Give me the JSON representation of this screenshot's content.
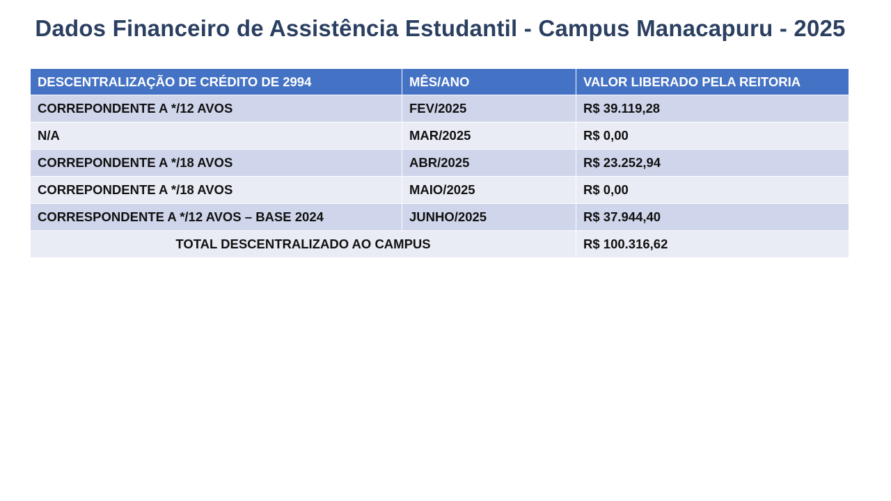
{
  "title": "Dados Financeiro de Assistência Estudantil - Campus Manacapuru - 2025",
  "table": {
    "headers": [
      "DESCENTRALIZAÇÃO DE CRÉDITO DE 2994",
      "MÊS/ANO",
      "VALOR LIBERADO PELA REITORIA"
    ],
    "rows": [
      {
        "descricao": "CORREPONDENTE A */12 AVOS",
        "mes": "FEV/2025",
        "valor": "R$ 39.119,28"
      },
      {
        "descricao": "N/A",
        "mes": "MAR/2025",
        "valor": "R$ 0,00"
      },
      {
        "descricao": "CORREPONDENTE A */18 AVOS",
        "mes": "ABR/2025",
        "valor": "R$ 23.252,94"
      },
      {
        "descricao": "CORREPONDENTE A */18 AVOS",
        "mes": "MAIO/2025",
        "valor": "R$ 0,00"
      },
      {
        "descricao": "CORRESPONDENTE A */12 AVOS – BASE 2024",
        "mes": "JUNHO/2025",
        "valor": "R$ 37.944,40"
      }
    ],
    "total": {
      "label": "TOTAL DESCENTRALIZADO AO CAMPUS",
      "valor": "R$ 100.316,62"
    }
  },
  "colors": {
    "title": "#2b3f61",
    "header_bg": "#4472c4",
    "row_dark": "#cfd5ea",
    "row_light": "#e9ebf5"
  }
}
